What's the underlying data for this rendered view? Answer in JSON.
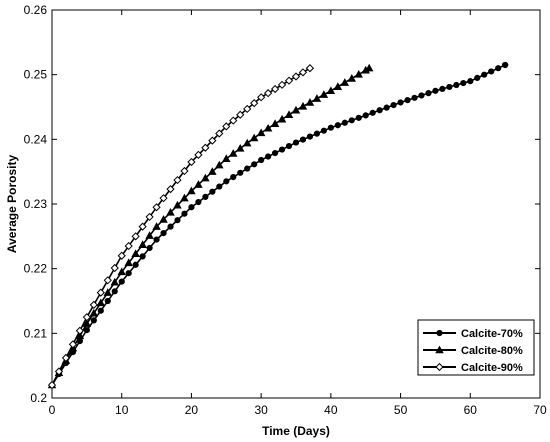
{
  "chart_data": {
    "type": "line",
    "title": "",
    "xlabel": "Time (Days)",
    "ylabel": "Average Porosity",
    "xlim": [
      0,
      70
    ],
    "ylim": [
      0.2,
      0.26
    ],
    "xticks": [
      "0",
      "10",
      "20",
      "30",
      "40",
      "50",
      "60",
      "70"
    ],
    "yticks": [
      "0.2",
      "0.21",
      "0.22",
      "0.23",
      "0.24",
      "0.25",
      "0.26"
    ],
    "grid": false,
    "legend_position": "bottom-right",
    "series": [
      {
        "name": "Calcite-70%",
        "marker": "filled-circle",
        "color": "#000000",
        "x": [
          0,
          5,
          10,
          15,
          20,
          25,
          30,
          35,
          40,
          45,
          50,
          55,
          60,
          65
        ],
        "y": [
          0.202,
          0.2105,
          0.218,
          0.2245,
          0.2295,
          0.2335,
          0.2368,
          0.2395,
          0.2418,
          0.2437,
          0.2457,
          0.2475,
          0.249,
          0.2515
        ]
      },
      {
        "name": "Calcite-80%",
        "marker": "filled-triangle",
        "color": "#000000",
        "x": [
          0,
          5,
          10,
          15,
          20,
          25,
          30,
          35,
          40,
          45.5
        ],
        "y": [
          0.202,
          0.2115,
          0.2195,
          0.2265,
          0.232,
          0.237,
          0.241,
          0.2445,
          0.2475,
          0.251
        ]
      },
      {
        "name": "Calcite-90%",
        "marker": "open-diamond",
        "color": "#000000",
        "x": [
          0,
          5,
          10,
          15,
          20,
          25,
          30,
          37
        ],
        "y": [
          0.202,
          0.2125,
          0.222,
          0.2295,
          0.2365,
          0.242,
          0.2465,
          0.251
        ]
      }
    ]
  }
}
